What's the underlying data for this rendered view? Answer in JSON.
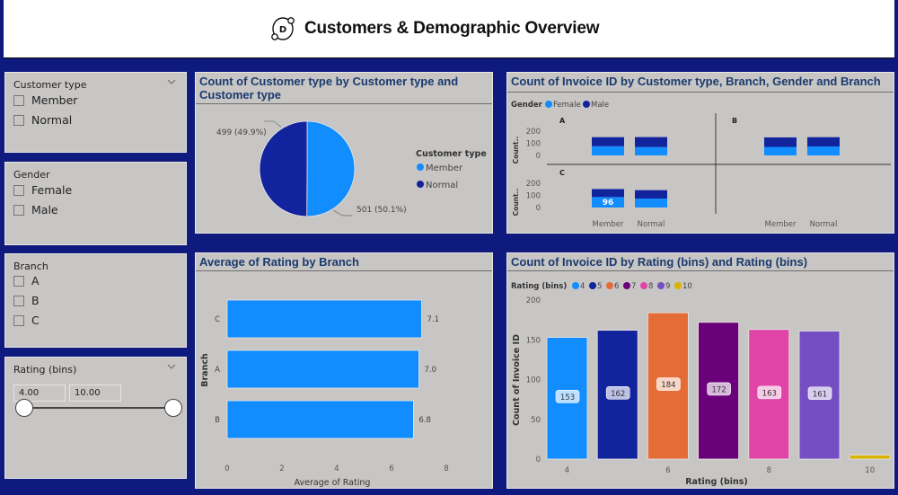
{
  "header": {
    "title": "Customers & Demographic Overview",
    "logo_letter": "D"
  },
  "colors": {
    "background": "#0f1a7e",
    "panel": "#c8c6c4",
    "title_text": "#1a3a6e",
    "member": "#118dff",
    "normal": "#12239e"
  },
  "slicers": {
    "customer_type": {
      "title": "Customer type",
      "items": [
        "Member",
        "Normal"
      ]
    },
    "gender": {
      "title": "Gender",
      "items": [
        "Female",
        "Male"
      ]
    },
    "branch": {
      "title": "Branch",
      "items": [
        "A",
        "B",
        "C"
      ]
    },
    "rating": {
      "title": "Rating (bins)",
      "min_value": "4.00",
      "max_value": "10.00",
      "range_low": 4,
      "range_high": 10
    }
  },
  "chart_data": [
    {
      "id": "pie",
      "type": "pie",
      "title": "Count of Customer type by Customer type and Customer type",
      "legend_title": "Customer type",
      "legend_position": "right",
      "slices": [
        {
          "label": "Member",
          "value": 501,
          "data_label": "501 (50.1%)",
          "color": "#118dff"
        },
        {
          "label": "Normal",
          "value": 499,
          "data_label": "499 (49.9%)",
          "color": "#12239e"
        }
      ]
    },
    {
      "id": "small-multiples",
      "type": "bar",
      "stacked": true,
      "title": "Count of Invoice ID by Customer type, Branch, Gender and Branch",
      "legend_title": "Gender",
      "legend_position": "top-left",
      "series_names": [
        "Female",
        "Male"
      ],
      "series_colors": [
        "#118dff",
        "#12239e"
      ],
      "ylabel": "Count..",
      "yticks": [
        0,
        100,
        200
      ],
      "ylim": [
        0,
        200
      ],
      "categories": [
        "Member",
        "Normal"
      ],
      "panels": [
        {
          "label": "A",
          "series": [
            {
              "name": "Female",
              "values": [
                84,
                77
              ]
            },
            {
              "name": "Male",
              "values": [
                83,
                91
              ]
            }
          ]
        },
        {
          "label": "B",
          "series": [
            {
              "name": "Female",
              "values": [
                78,
                82
              ]
            },
            {
              "name": "Male",
              "values": [
                87,
                85
              ]
            }
          ]
        },
        {
          "label": "C",
          "series": [
            {
              "name": "Female",
              "values": [
                96,
                82
              ]
            },
            {
              "name": "Male",
              "values": [
                73,
                77
              ]
            }
          ],
          "annotation": "96"
        }
      ]
    },
    {
      "id": "avg-rating",
      "type": "bar",
      "orientation": "horizontal",
      "title": "Average of Rating by Branch",
      "categories": [
        "C",
        "A",
        "B"
      ],
      "values": [
        7.1,
        7.0,
        6.8
      ],
      "data_labels": [
        "7.1",
        "7.0",
        "6.8"
      ],
      "xlabel": "Average of Rating",
      "ylabel": "Branch",
      "xticks": [
        0,
        2,
        4,
        6,
        8
      ],
      "xlim": [
        0,
        8
      ],
      "color": "#118dff"
    },
    {
      "id": "rating-bins",
      "type": "bar",
      "title": "Count of Invoice ID by Rating (bins) and Rating (bins)",
      "legend_title": "Rating (bins)",
      "legend_position": "top-left",
      "categories": [
        "4",
        "5",
        "6",
        "7",
        "8",
        "9",
        "10"
      ],
      "values": [
        153,
        162,
        184,
        172,
        163,
        161,
        5
      ],
      "data_labels": [
        "153",
        "162",
        "184",
        "172",
        "163",
        "161",
        ""
      ],
      "colors": [
        "#118dff",
        "#12239e",
        "#e66c37",
        "#6b007b",
        "#e044a7",
        "#744ec2",
        "#d9b300"
      ],
      "xlabel": "Rating (bins)",
      "ylabel": "Count of Invoice ID",
      "xtick_labels": [
        "4",
        "",
        "6",
        "",
        "8",
        "",
        "10"
      ],
      "yticks": [
        0,
        50,
        100,
        150,
        200
      ],
      "ylim": [
        0,
        200
      ]
    }
  ]
}
